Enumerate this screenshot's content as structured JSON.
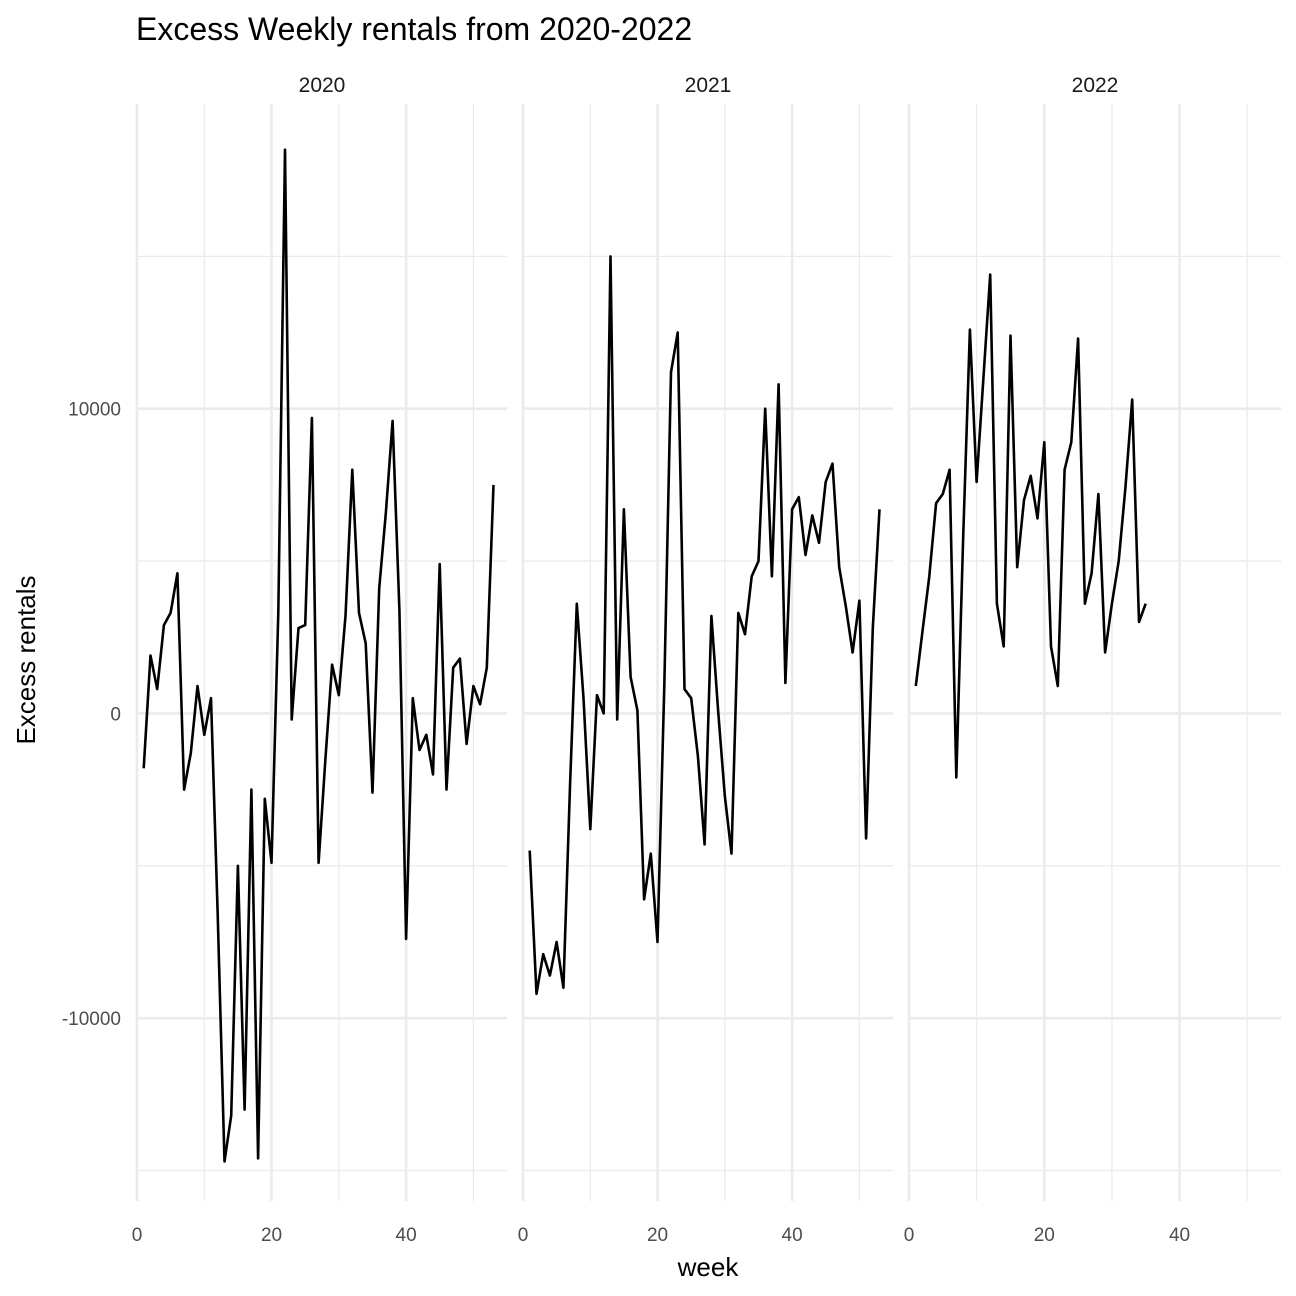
{
  "chart_data": {
    "type": "line",
    "title": "Excess Weekly rentals from 2020-2022",
    "xlabel": "week",
    "ylabel": "Excess rentals",
    "xlim": [
      0,
      55
    ],
    "ylim": [
      -16000,
      20000
    ],
    "x_ticks": [
      0,
      20,
      40
    ],
    "y_ticks": [
      -10000,
      0,
      10000
    ],
    "x_tick_labels": [
      "0",
      "20",
      "40"
    ],
    "y_tick_labels": [
      "-10000",
      "0",
      "10000"
    ],
    "grid": true,
    "facets": [
      {
        "label": "2020",
        "x": [
          1,
          2,
          3,
          4,
          5,
          6,
          7,
          8,
          9,
          10,
          11,
          12,
          13,
          14,
          15,
          16,
          17,
          18,
          19,
          20,
          21,
          22,
          23,
          24,
          25,
          26,
          27,
          28,
          29,
          30,
          31,
          32,
          33,
          34,
          35,
          36,
          37,
          38,
          39,
          40,
          41,
          42,
          43,
          44,
          45,
          46,
          47,
          48,
          49,
          50,
          51,
          52,
          53
        ],
        "values": [
          -1800,
          1900,
          800,
          2900,
          3300,
          4600,
          -2500,
          -1300,
          900,
          -700,
          500,
          -6600,
          -14700,
          -13200,
          -5000,
          -13000,
          -2500,
          -14600,
          -2800,
          -4900,
          3300,
          18500,
          -200,
          2800,
          2900,
          9700,
          -4900,
          -1500,
          1600,
          600,
          3200,
          8000,
          3300,
          2300,
          -2600,
          4100,
          6600,
          9600,
          3400,
          -7400,
          500,
          -1200,
          -700,
          -2000,
          4900,
          -2500,
          1500,
          1800,
          -1000,
          900,
          300,
          1500,
          7500
        ]
      },
      {
        "label": "2021",
        "x": [
          1,
          2,
          3,
          4,
          5,
          6,
          7,
          8,
          9,
          10,
          11,
          12,
          13,
          14,
          15,
          16,
          17,
          18,
          19,
          20,
          21,
          22,
          23,
          24,
          25,
          26,
          27,
          28,
          29,
          30,
          31,
          32,
          33,
          34,
          35,
          36,
          37,
          38,
          39,
          40,
          41,
          42,
          43,
          44,
          45,
          46,
          47,
          48,
          49,
          50,
          51,
          52,
          53
        ],
        "values": [
          -4500,
          -9200,
          -7900,
          -8600,
          -7500,
          -9000,
          -2300,
          3600,
          500,
          -3800,
          600,
          0,
          15000,
          -200,
          6700,
          1200,
          100,
          -6100,
          -4600,
          -7500,
          900,
          11200,
          12500,
          800,
          500,
          -1400,
          -4300,
          3200,
          100,
          -2700,
          -4600,
          3300,
          2600,
          4500,
          5000,
          10000,
          4500,
          10800,
          1000,
          6700,
          7100,
          5200,
          6500,
          5600,
          7600,
          8200,
          4800,
          3500,
          2000,
          3700,
          -4100,
          2800,
          6700
        ]
      },
      {
        "label": "2022",
        "x": [
          1,
          2,
          3,
          4,
          5,
          6,
          7,
          8,
          9,
          10,
          11,
          12,
          13,
          14,
          15,
          16,
          17,
          18,
          19,
          20,
          21,
          22,
          23,
          24,
          25,
          26,
          27,
          28,
          29,
          30,
          31,
          32,
          33,
          34,
          35
        ],
        "values": [
          900,
          2700,
          4500,
          6900,
          7200,
          8000,
          -2100,
          5700,
          12600,
          7600,
          11000,
          14400,
          3600,
          2200,
          12400,
          4800,
          7000,
          7800,
          6400,
          8900,
          2200,
          900,
          8000,
          8900,
          12300,
          3600,
          4600,
          7200,
          2000,
          3600,
          5000,
          7400,
          10300,
          3000,
          3600
        ]
      }
    ]
  }
}
